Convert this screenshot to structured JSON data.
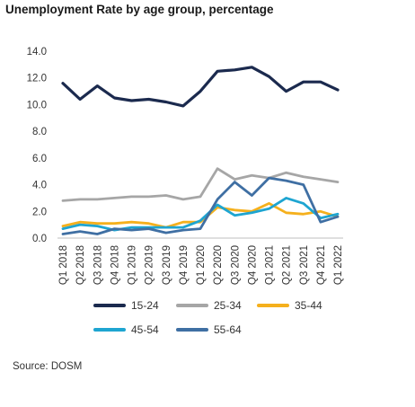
{
  "chart_data": {
    "type": "line",
    "title": "Unemployment Rate by age group, percentage",
    "x": [
      "Q1 2018",
      "Q2 2018",
      "Q3 2018",
      "Q4 2018",
      "Q1 2019",
      "Q2 2019",
      "Q3 2019",
      "Q4 2019",
      "Q1 2020",
      "Q2 2020",
      "Q3 2020",
      "Q4 2020",
      "Q1 2021",
      "Q2 2021",
      "Q3 2021",
      "Q4 2021",
      "Q1 2022"
    ],
    "ylim": [
      0,
      14
    ],
    "yticks": [
      "0.0",
      "2.0",
      "4.0",
      "6.0",
      "8.0",
      "10.0",
      "12.0",
      "14.0"
    ],
    "grid": false,
    "series": [
      {
        "name": "15-24",
        "color": "#1b2a4e",
        "values": [
          11.6,
          10.4,
          11.4,
          10.5,
          10.3,
          10.4,
          10.2,
          9.9,
          11.0,
          12.5,
          12.6,
          12.8,
          12.1,
          11.0,
          11.7,
          11.7,
          11.1
        ]
      },
      {
        "name": "25-34",
        "color": "#a6a6a6",
        "values": [
          2.8,
          2.9,
          2.9,
          3.0,
          3.1,
          3.1,
          3.2,
          2.9,
          3.1,
          5.2,
          4.4,
          4.7,
          4.5,
          4.9,
          4.6,
          4.4,
          4.2
        ]
      },
      {
        "name": "35-44",
        "color": "#f5b01d",
        "values": [
          0.9,
          1.2,
          1.1,
          1.1,
          1.2,
          1.1,
          0.8,
          1.2,
          1.2,
          2.3,
          2.1,
          2.0,
          2.6,
          1.9,
          1.8,
          2.0,
          1.6
        ]
      },
      {
        "name": "45-54",
        "color": "#1ea5d1",
        "values": [
          0.7,
          1.0,
          0.9,
          0.6,
          0.8,
          0.8,
          0.8,
          0.8,
          1.3,
          2.5,
          1.7,
          1.9,
          2.2,
          3.0,
          2.6,
          1.5,
          1.8
        ]
      },
      {
        "name": "55-64",
        "color": "#3f6fa3",
        "values": [
          0.3,
          0.5,
          0.3,
          0.7,
          0.6,
          0.7,
          0.4,
          0.6,
          0.7,
          2.9,
          4.2,
          3.2,
          4.5,
          4.3,
          4.0,
          1.2,
          1.6
        ]
      }
    ]
  },
  "source": "Source: DOSM"
}
